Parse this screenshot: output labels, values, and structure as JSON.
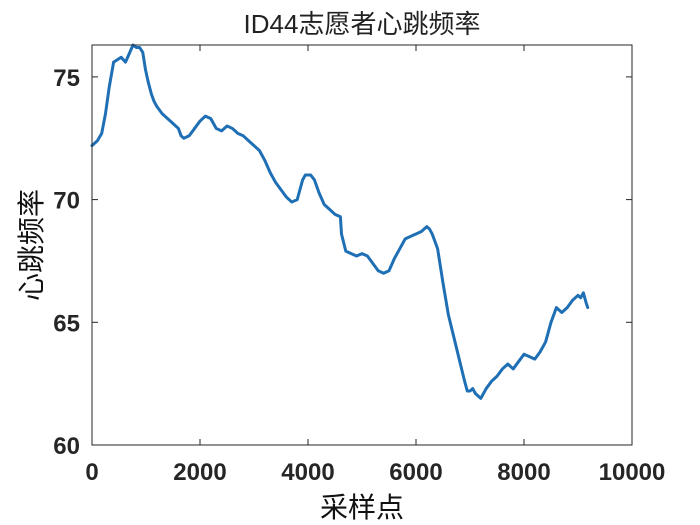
{
  "chart_data": {
    "type": "line",
    "title": "ID44志愿者心跳频率",
    "xlabel": "采样点",
    "ylabel": "心跳频率",
    "xlim": [
      0,
      10000
    ],
    "ylim": [
      60,
      76.3
    ],
    "xticks": [
      0,
      2000,
      4000,
      6000,
      8000,
      10000
    ],
    "xtick_labels": [
      "0",
      "2000",
      "4000",
      "6000",
      "8000",
      "10000"
    ],
    "yticks": [
      60,
      65,
      70,
      75
    ],
    "ytick_labels": [
      "60",
      "65",
      "70",
      "75"
    ],
    "grid": false,
    "legend": "none",
    "series": [
      {
        "color": "#1f6fb5",
        "x": [
          0,
          100,
          180,
          250,
          320,
          400,
          470,
          540,
          620,
          700,
          760,
          820,
          880,
          940,
          990,
          1040,
          1100,
          1150,
          1200,
          1300,
          1400,
          1500,
          1600,
          1650,
          1700,
          1800,
          1900,
          2000,
          2100,
          2200,
          2250,
          2300,
          2400,
          2500,
          2600,
          2700,
          2800,
          2900,
          3000,
          3100,
          3200,
          3300,
          3400,
          3500,
          3600,
          3700,
          3800,
          3900,
          3950,
          4000,
          4050,
          4120,
          4200,
          4300,
          4400,
          4500,
          4600,
          4620,
          4700,
          4800,
          4900,
          5000,
          5100,
          5200,
          5300,
          5400,
          5500,
          5600,
          5700,
          5800,
          5900,
          6000,
          6100,
          6200,
          6250,
          6300,
          6400,
          6500,
          6600,
          6700,
          6800,
          6900,
          6950,
          7000,
          7050,
          7100,
          7200,
          7300,
          7400,
          7500,
          7600,
          7700,
          7800,
          7900,
          8000,
          8100,
          8200,
          8300,
          8400,
          8500,
          8600,
          8700,
          8800,
          8900,
          9000,
          9050,
          9100,
          9150,
          9180
        ],
        "y": [
          72.2,
          72.4,
          72.7,
          73.5,
          74.6,
          75.6,
          75.7,
          75.8,
          75.6,
          76.0,
          76.3,
          76.2,
          76.2,
          76.0,
          75.3,
          74.8,
          74.3,
          74.0,
          73.8,
          73.5,
          73.3,
          73.1,
          72.9,
          72.6,
          72.5,
          72.6,
          72.9,
          73.2,
          73.4,
          73.3,
          73.1,
          72.9,
          72.8,
          73.0,
          72.9,
          72.7,
          72.6,
          72.4,
          72.2,
          72.0,
          71.6,
          71.1,
          70.7,
          70.4,
          70.1,
          69.9,
          70.0,
          70.8,
          71.0,
          71.0,
          71.0,
          70.8,
          70.3,
          69.8,
          69.6,
          69.4,
          69.3,
          68.6,
          67.9,
          67.8,
          67.7,
          67.8,
          67.7,
          67.4,
          67.1,
          67.0,
          67.1,
          67.6,
          68.0,
          68.4,
          68.5,
          68.6,
          68.7,
          68.9,
          68.8,
          68.6,
          68.0,
          66.6,
          65.3,
          64.4,
          63.5,
          62.6,
          62.2,
          62.2,
          62.3,
          62.1,
          61.9,
          62.3,
          62.6,
          62.8,
          63.1,
          63.3,
          63.1,
          63.4,
          63.7,
          63.6,
          63.5,
          63.8,
          64.2,
          65.0,
          65.6,
          65.4,
          65.6,
          65.9,
          66.1,
          66.0,
          66.2,
          65.8,
          65.6
        ]
      }
    ]
  }
}
